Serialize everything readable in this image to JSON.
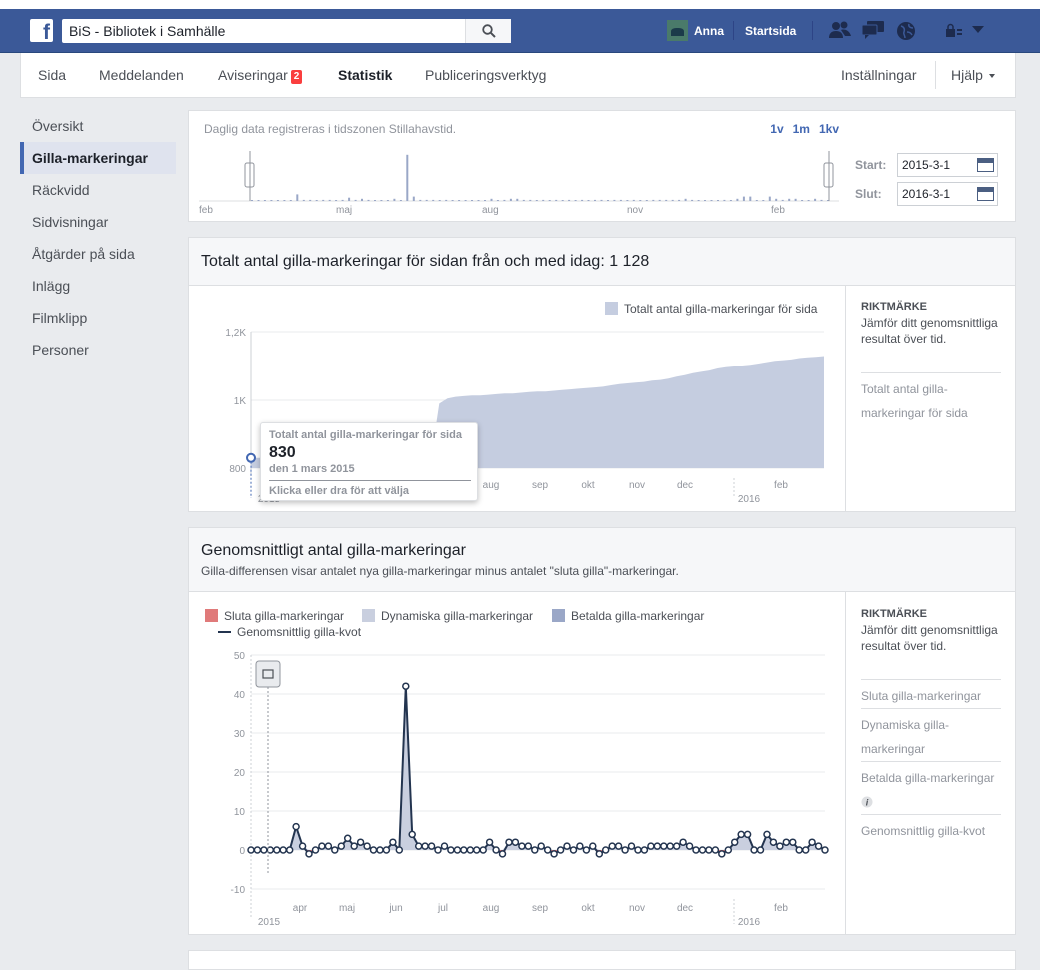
{
  "topbar": {
    "search_value": "BiS - Bibliotek i Samhälle",
    "user_name": "Anna",
    "home_label": "Startsida"
  },
  "nav": {
    "tabs": [
      {
        "label": "Sida"
      },
      {
        "label": "Meddelanden"
      },
      {
        "label": "Aviseringar",
        "badge": "2"
      },
      {
        "label": "Statistik",
        "active": true
      },
      {
        "label": "Publiceringsverktyg"
      }
    ],
    "settings_label": "Inställningar",
    "help_label": "Hjälp"
  },
  "sidebar": {
    "items": [
      {
        "label": "Översikt"
      },
      {
        "label": "Gilla-markeringar",
        "active": true
      },
      {
        "label": "Räckvidd"
      },
      {
        "label": "Sidvisningar"
      },
      {
        "label": "Åtgärder på sida"
      },
      {
        "label": "Inlägg"
      },
      {
        "label": "Filmklipp"
      },
      {
        "label": "Personer"
      }
    ]
  },
  "range_card": {
    "timezone_note": "Daglig data registreras i tidszonen Stillahavstid.",
    "range_1w": "1v",
    "range_1m": "1m",
    "range_1q": "1kv",
    "start_label": "Start:",
    "start_value": "2015-3-1",
    "end_label": "Slut:",
    "end_value": "2016-3-1",
    "month_labels": [
      "feb",
      "maj",
      "aug",
      "nov",
      "feb"
    ]
  },
  "total_card": {
    "title": "Totalt antal gilla-markeringar för sidan från och med idag: 1 128",
    "legend": "Totalt antal gilla-markeringar för sida",
    "benchmark_heading": "RIKTMÄRKE",
    "benchmark_desc": "Jämför ditt genomsnittliga resultat över tid.",
    "benchmark_link": "Totalt antal gilla-markeringar för sida",
    "tooltip": {
      "title": "Totalt antal gilla-markeringar för sida",
      "value": "830",
      "date": "den 1 mars 2015",
      "hint": "Klicka eller dra för att välja"
    }
  },
  "avg_card": {
    "title": "Genomsnittligt antal gilla-markeringar",
    "subtitle": "Gilla-differensen visar antalet nya gilla-markeringar minus antalet \"sluta gilla\"-markeringar.",
    "legend": {
      "unlikes": "Sluta gilla-markeringar",
      "organic": "Dynamiska gilla-markeringar",
      "paid": "Betalda gilla-markeringar",
      "net": "Genomsnittlig gilla-kvot"
    },
    "benchmark_heading": "RIKTMÄRKE",
    "benchmark_desc": "Jämför ditt genomsnittliga resultat över tid.",
    "benchmark_links": [
      "Sluta gilla-markeringar",
      "Dynamiska gilla-markeringar",
      "Betalda gilla-markeringar",
      "Genomsnittlig gilla-kvot"
    ]
  },
  "colors": {
    "brand": "#3b5998",
    "area": "#c5cde0",
    "unlikes": "#e07a7a",
    "organic": "#c9cfdf",
    "paid": "#9aa7c7",
    "net_line": "#23344f"
  },
  "chart_data": [
    {
      "type": "area",
      "title": "Totalt antal gilla-markeringar för sidan från och med idag: 1 128",
      "series": [
        {
          "name": "Totalt antal gilla-markeringar för sida",
          "values": [
            830,
            830,
            830,
            830,
            830,
            830,
            830,
            830,
            830,
            830,
            830,
            830,
            830,
            830,
            830,
            830,
            830,
            830,
            830,
            830,
            830,
            830,
            830,
            990,
            1005,
            1010,
            1012,
            1014,
            1014,
            1016,
            1018,
            1020,
            1020,
            1022,
            1024,
            1026,
            1026,
            1028,
            1030,
            1032,
            1034,
            1036,
            1038,
            1040,
            1044,
            1048,
            1050,
            1052,
            1054,
            1058,
            1060,
            1064,
            1070,
            1074,
            1080,
            1084,
            1088,
            1094,
            1098,
            1100,
            1100,
            1102,
            1106,
            1110,
            1114,
            1116,
            1118,
            1122,
            1124,
            1126,
            1128
          ]
        }
      ],
      "x_tick_labels": [
        "aug",
        "sep",
        "okt",
        "nov",
        "dec",
        "feb"
      ],
      "year_labels": [
        "2015",
        "2016"
      ],
      "y_tick_labels": [
        "800",
        "1K",
        "1,2K"
      ],
      "ylim": [
        800,
        1200
      ]
    },
    {
      "type": "line",
      "title": "Genomsnittligt antal gilla-markeringar",
      "series": [
        {
          "name": "Genomsnittlig gilla-kvot",
          "values": [
            0,
            0,
            0,
            0,
            0,
            0,
            0,
            6,
            1,
            -1,
            0,
            1,
            1,
            0,
            1,
            3,
            1,
            2,
            1,
            0,
            0,
            0,
            2,
            0,
            42,
            4,
            1,
            1,
            1,
            0,
            1,
            0,
            0,
            0,
            0,
            0,
            0,
            2,
            0,
            -1,
            2,
            2,
            1,
            1,
            0,
            1,
            0,
            -1,
            0,
            1,
            0,
            1,
            0,
            1,
            -1,
            0,
            1,
            1,
            0,
            1,
            0,
            0,
            1,
            1,
            1,
            1,
            1,
            2,
            1,
            0,
            0,
            0,
            0,
            -1,
            0,
            2,
            4,
            4,
            0,
            0,
            4,
            2,
            1,
            2,
            2,
            0,
            0,
            2,
            1,
            0
          ]
        }
      ],
      "x_tick_labels": [
        "apr",
        "maj",
        "jun",
        "jul",
        "aug",
        "sep",
        "okt",
        "nov",
        "dec",
        "feb"
      ],
      "year_labels": [
        "2015",
        "2016"
      ],
      "y_tick_labels": [
        "50",
        "40",
        "30",
        "20",
        "10",
        "0",
        "-10"
      ],
      "ylim": [
        -10,
        50
      ]
    }
  ]
}
